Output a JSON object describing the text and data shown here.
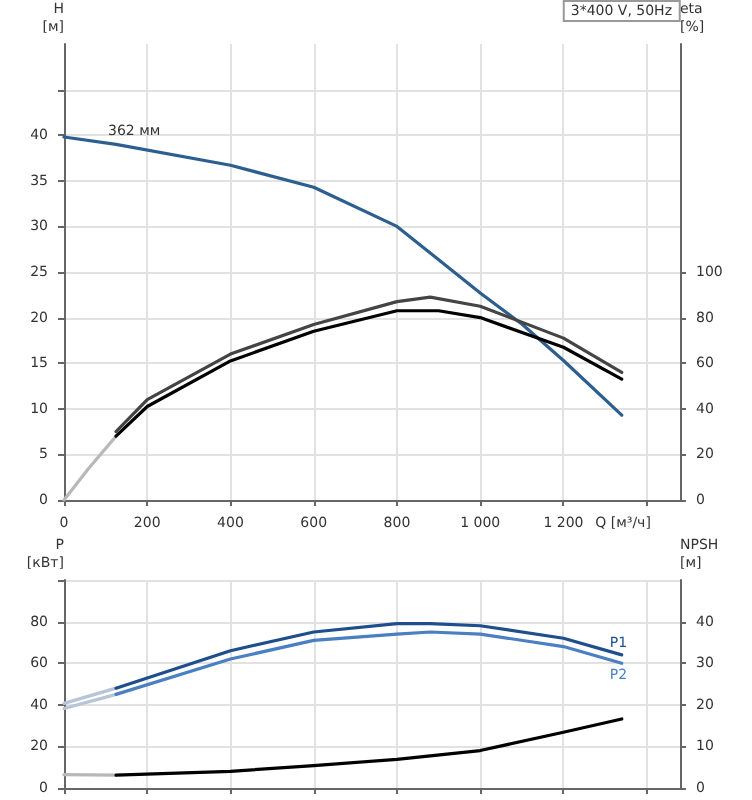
{
  "chart_data": [
    {
      "type": "line",
      "title": "3*400 V, 50Hz",
      "xlabel": "Q [м³/ч]",
      "ylabel": "H\n[м]",
      "y2label": "eta\n[%]",
      "xlim": [
        0,
        1480
      ],
      "xticks": [
        0,
        200,
        400,
        600,
        800,
        {
          "value": 1000,
          "label": "1 000"
        },
        {
          "value": 1200,
          "label": "1 200"
        },
        {
          "value": 1400,
          "label": null
        }
      ],
      "ylim": [
        0,
        50
      ],
      "yticks": [
        0,
        5,
        10,
        15,
        20,
        25,
        30,
        35,
        40,
        {
          "value": 45,
          "label": null
        }
      ],
      "y2lim": [
        0,
        200
      ],
      "y2ticks": [
        0,
        20,
        40,
        60,
        80,
        100
      ],
      "grid": true,
      "legend": false,
      "marker": "none",
      "line_style": "solid",
      "annotations": [
        {
          "text": "362 мм",
          "x": 125,
          "y": 39
        }
      ],
      "series": [
        {
          "color": "#2c5f8f",
          "x": [
            0,
            125,
            400,
            600,
            800,
            1000,
            1100,
            1200,
            1340
          ],
          "values": [
            39.8,
            39,
            36.7,
            34.3,
            30,
            22.7,
            19.3,
            15.3,
            9.3
          ]
        },
        {
          "color": "#b8b8b8",
          "axis": "y2",
          "x": [
            0,
            60,
            125
          ],
          "values": [
            0,
            14,
            28
          ]
        },
        {
          "color": "#000000",
          "axis": "y2",
          "x": [
            125,
            200,
            400,
            600,
            800,
            900,
            1000,
            1200,
            1340
          ],
          "values": [
            28,
            41,
            61,
            74,
            83,
            83,
            80,
            67,
            53
          ]
        },
        {
          "color": "#444444",
          "axis": "y2",
          "x": [
            125,
            200,
            400,
            600,
            800,
            880,
            1000,
            1200,
            1340
          ],
          "values": [
            30,
            44,
            64,
            77,
            87,
            89,
            85,
            71,
            56
          ]
        }
      ]
    },
    {
      "type": "line",
      "ylabel": "P\n[кВт]",
      "y2label": "NPSH\n[м]",
      "xlim": [
        0,
        1480
      ],
      "xticks": [
        0,
        200,
        400,
        600,
        800,
        1000,
        1200,
        1400
      ],
      "tick_labels": "y",
      "ylim": [
        0,
        100
      ],
      "yticks": [
        0,
        20,
        40,
        60,
        80,
        {
          "value": 100,
          "label": null
        }
      ],
      "y2lim": [
        0,
        50
      ],
      "y2ticks": [
        0,
        10,
        20,
        30,
        40
      ],
      "grid": true,
      "legend": false,
      "marker": "none",
      "line_style": "solid",
      "series": [
        {
          "color": "#b8c4d8",
          "x": [
            0,
            125
          ],
          "values": [
            40.7,
            48
          ]
        },
        {
          "color": "#b8c4d8",
          "x": [
            0,
            125
          ],
          "values": [
            38.2,
            45
          ]
        },
        {
          "name": "P1",
          "color": "#1f4e8c",
          "x": [
            125,
            400,
            600,
            800,
            880,
            1000,
            1200,
            1340
          ],
          "values": [
            48,
            66,
            75,
            79,
            79,
            78,
            72,
            64
          ]
        },
        {
          "name": "P2",
          "color": "#4a7fc1",
          "x": [
            125,
            400,
            600,
            800,
            880,
            1000,
            1200,
            1340
          ],
          "values": [
            45,
            62,
            71,
            74,
            75,
            74,
            68,
            60
          ]
        },
        {
          "color": "#b8b8b8",
          "axis": "y2",
          "x": [
            0,
            125
          ],
          "values": [
            3.2,
            3.1
          ]
        },
        {
          "color": "#000000",
          "axis": "y2",
          "x": [
            125,
            400,
            600,
            800,
            1000,
            1200,
            1340
          ],
          "values": [
            3.1,
            4,
            5.4,
            6.9,
            9,
            13.4,
            16.6
          ]
        }
      ]
    }
  ]
}
